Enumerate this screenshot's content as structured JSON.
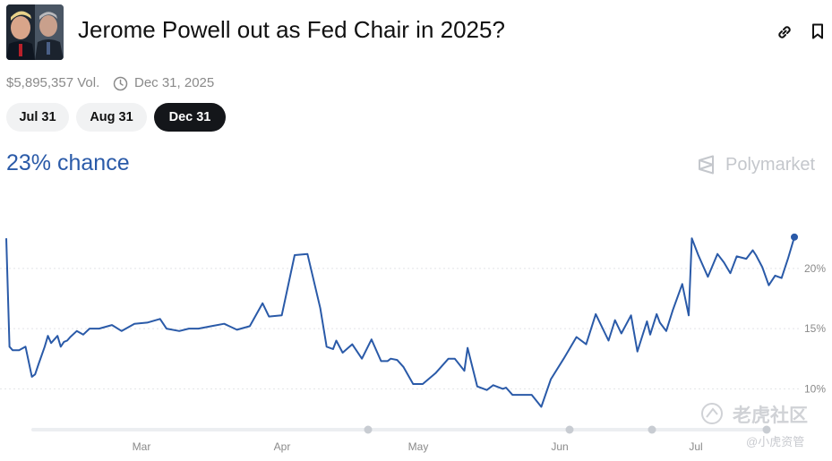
{
  "market": {
    "title": "Jerome Powell out as Fed Chair in 2025?",
    "volume": "$5,895,357 Vol.",
    "end_date": "Dec 31, 2025",
    "chance": "23% chance",
    "thumbnail_alt": "Trump and Powell portrait"
  },
  "icons": {
    "link": "link-icon",
    "bookmark": "bookmark-icon",
    "clock": "clock-icon",
    "brand": "polymarket-logo-icon"
  },
  "tabs": [
    {
      "label": "Jul 31",
      "active": false
    },
    {
      "label": "Aug 31",
      "active": false
    },
    {
      "label": "Dec 31",
      "active": true
    }
  ],
  "brand": "Polymarket",
  "watermarks": {
    "main": "老虎社区",
    "sub": "@小虎资管"
  },
  "colors": {
    "line": "#2a5aa8",
    "active_tab": "#14161a",
    "tab": "#f1f2f3",
    "muted_text": "#8a8a8a"
  },
  "chart_data": {
    "type": "line",
    "x_ticks": [
      "Mar",
      "Apr",
      "May",
      "Jun",
      "Jul"
    ],
    "y_ticks": [
      "10%",
      "15%",
      "20%"
    ],
    "ylim": [
      7.5,
      24
    ],
    "grid": true,
    "series": [
      {
        "x": [
          0,
          1,
          2,
          4,
          6,
          8,
          9,
          10,
          12,
          13,
          14,
          16,
          17,
          18,
          19,
          20,
          22,
          24,
          26,
          29,
          33,
          36,
          40,
          44,
          48,
          50,
          54,
          57,
          60,
          64,
          68,
          72,
          76,
          80,
          82,
          86,
          90,
          94,
          98,
          100,
          102,
          103,
          105,
          108,
          111,
          114,
          117,
          119,
          120,
          122,
          124,
          127,
          130,
          134,
          138,
          140,
          143,
          144,
          147,
          150,
          152,
          155,
          156,
          158,
          161,
          164,
          167,
          170,
          174,
          178,
          181,
          184,
          188,
          190,
          192,
          195,
          197,
          200,
          201,
          203,
          204,
          206,
          208,
          211,
          213,
          214,
          216,
          219,
          222,
          224,
          226,
          228,
          231,
          233,
          234,
          236,
          238,
          240,
          242,
          244,
          246
        ],
        "y": [
          22.5,
          13.5,
          13.2,
          13.2,
          13.5,
          11,
          11.2,
          12,
          13.5,
          14.4,
          13.8,
          14.4,
          13.5,
          13.9,
          14,
          14.3,
          14.8,
          14.5,
          15,
          15,
          15.3,
          14.8,
          15.4,
          15.5,
          15.8,
          15,
          14.8,
          15,
          15,
          15.2,
          15.4,
          14.9,
          15.2,
          17.1,
          16,
          16.1,
          21.1,
          21.2,
          16.7,
          13.5,
          13.3,
          14,
          13,
          13.7,
          12.5,
          14.1,
          12.3,
          12.3,
          12.5,
          12.4,
          11.8,
          10.4,
          10.4,
          11.3,
          12.5,
          12.5,
          11.5,
          13.4,
          10.2,
          9.9,
          10.3,
          10,
          10.1,
          9.5,
          9.5,
          9.5,
          8.5,
          10.8,
          12.5,
          14.3,
          13.7,
          16.2,
          14,
          15.7,
          14.6,
          16.1,
          13.1,
          15.6,
          14.5,
          16.2,
          15.5,
          14.8,
          16.5,
          18.7,
          16.1,
          22.5,
          21.1,
          19.3,
          21.2,
          20.5,
          19.6,
          21,
          20.8,
          21.5,
          21.1,
          20.1,
          18.6,
          19.4,
          19.2,
          20.8,
          22.6
        ]
      }
    ]
  }
}
